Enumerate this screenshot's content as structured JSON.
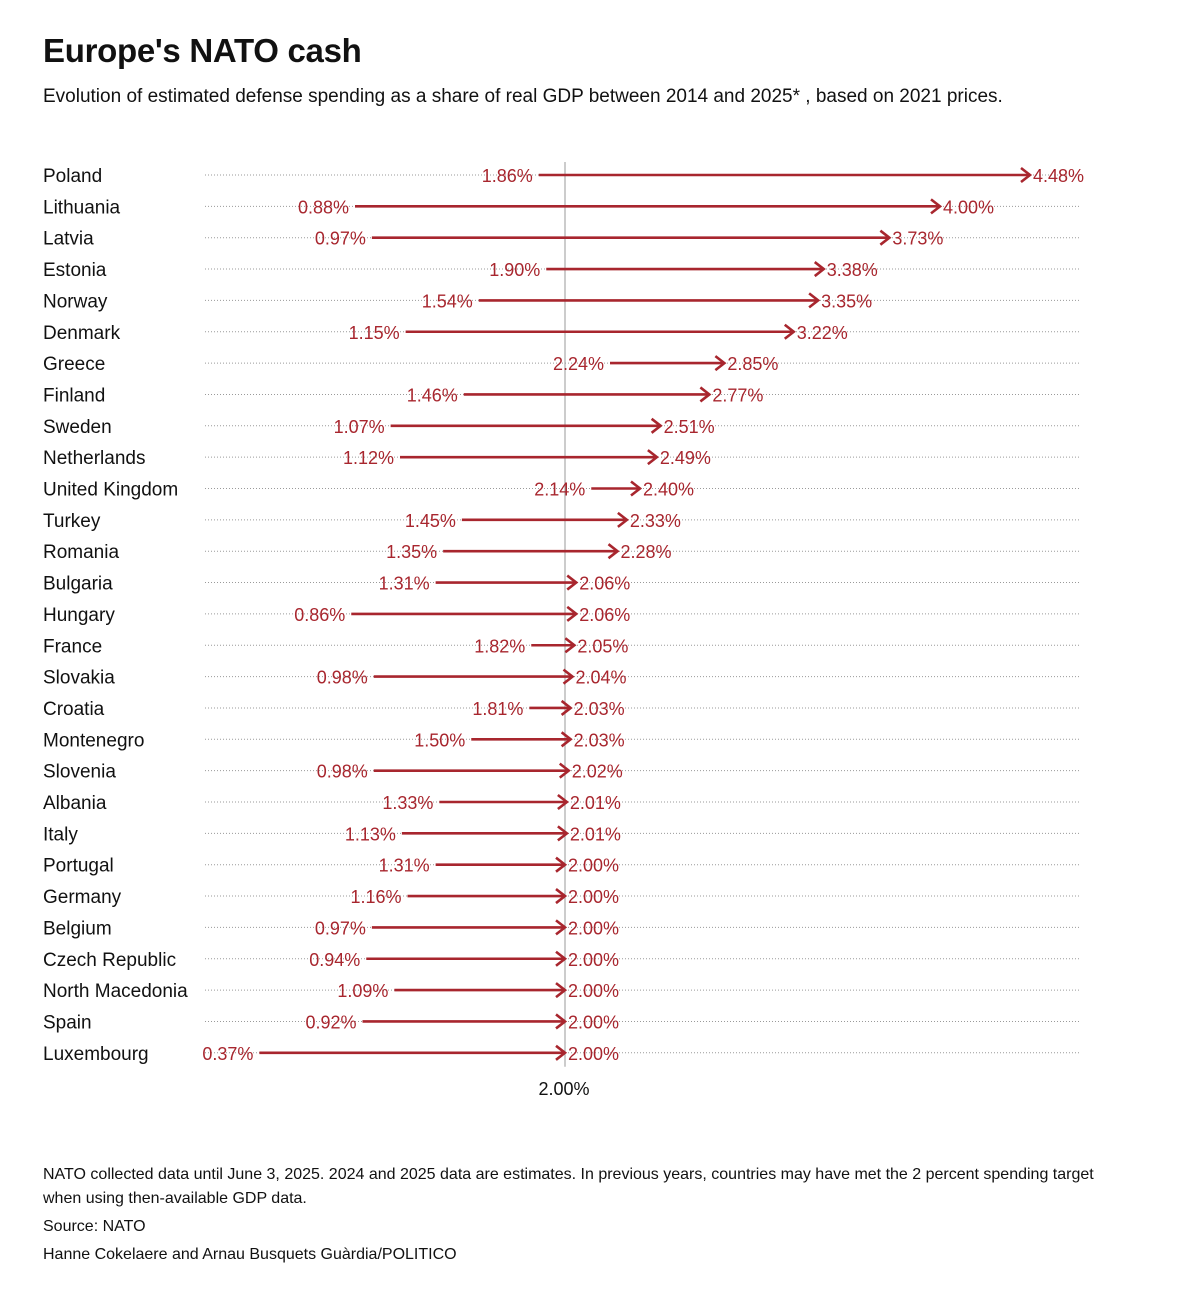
{
  "title": "Europe's NATO cash",
  "subtitle": "Evolution of estimated defense spending as a share of real GDP between 2014 and 2025* , based on 2021 prices.",
  "footer": {
    "note": "NATO collected data until June 3, 2025. 2024 and 2025 data are estimates. In previous years, countries may have met the 2 percent spending target when using then-available GDP data.",
    "source": "Source: NATO",
    "credit": "Hanne Cokelaere and Arnau Busquets Guàrdia/POLITICO"
  },
  "colors": {
    "accent": "#a8262e",
    "dots": "#9a9a9a",
    "refline": "#9a9a9a",
    "text": "#111111"
  },
  "chart_data": {
    "type": "dumbbell",
    "title": "Europe's NATO cash",
    "series": [
      {
        "name": "2014",
        "unit": "% of GDP"
      },
      {
        "name": "2025",
        "unit": "% of GDP"
      }
    ],
    "reference_line": {
      "value": 2.0,
      "label": "2.00%"
    },
    "xlim": [
      0.37,
      4.48
    ],
    "rows": [
      {
        "country": "Poland",
        "start": 1.86,
        "end": 4.48,
        "start_label": "1.86%",
        "end_label": "4.48%"
      },
      {
        "country": "Lithuania",
        "start": 0.88,
        "end": 4.0,
        "start_label": "0.88%",
        "end_label": "4.00%"
      },
      {
        "country": "Latvia",
        "start": 0.97,
        "end": 3.73,
        "start_label": "0.97%",
        "end_label": "3.73%"
      },
      {
        "country": "Estonia",
        "start": 1.9,
        "end": 3.38,
        "start_label": "1.90%",
        "end_label": "3.38%"
      },
      {
        "country": "Norway",
        "start": 1.54,
        "end": 3.35,
        "start_label": "1.54%",
        "end_label": "3.35%"
      },
      {
        "country": "Denmark",
        "start": 1.15,
        "end": 3.22,
        "start_label": "1.15%",
        "end_label": "3.22%"
      },
      {
        "country": "Greece",
        "start": 2.24,
        "end": 2.85,
        "start_label": "2.24%",
        "end_label": "2.85%"
      },
      {
        "country": "Finland",
        "start": 1.46,
        "end": 2.77,
        "start_label": "1.46%",
        "end_label": "2.77%"
      },
      {
        "country": "Sweden",
        "start": 1.07,
        "end": 2.51,
        "start_label": "1.07%",
        "end_label": "2.51%"
      },
      {
        "country": "Netherlands",
        "start": 1.12,
        "end": 2.49,
        "start_label": "1.12%",
        "end_label": "2.49%"
      },
      {
        "country": "United Kingdom",
        "start": 2.14,
        "end": 2.4,
        "start_label": "2.14%",
        "end_label": "2.40%"
      },
      {
        "country": "Turkey",
        "start": 1.45,
        "end": 2.33,
        "start_label": "1.45%",
        "end_label": "2.33%"
      },
      {
        "country": "Romania",
        "start": 1.35,
        "end": 2.28,
        "start_label": "1.35%",
        "end_label": "2.28%"
      },
      {
        "country": "Bulgaria",
        "start": 1.31,
        "end": 2.06,
        "start_label": "1.31%",
        "end_label": "2.06%"
      },
      {
        "country": "Hungary",
        "start": 0.86,
        "end": 2.06,
        "start_label": "0.86%",
        "end_label": "2.06%"
      },
      {
        "country": "France",
        "start": 1.82,
        "end": 2.05,
        "start_label": "1.82%",
        "end_label": "2.05%"
      },
      {
        "country": "Slovakia",
        "start": 0.98,
        "end": 2.04,
        "start_label": "0.98%",
        "end_label": "2.04%"
      },
      {
        "country": "Croatia",
        "start": 1.81,
        "end": 2.03,
        "start_label": "1.81%",
        "end_label": "2.03%"
      },
      {
        "country": "Montenegro",
        "start": 1.5,
        "end": 2.03,
        "start_label": "1.50%",
        "end_label": "2.03%"
      },
      {
        "country": "Slovenia",
        "start": 0.98,
        "end": 2.02,
        "start_label": "0.98%",
        "end_label": "2.02%"
      },
      {
        "country": "Albania",
        "start": 1.33,
        "end": 2.01,
        "start_label": "1.33%",
        "end_label": "2.01%"
      },
      {
        "country": "Italy",
        "start": 1.13,
        "end": 2.01,
        "start_label": "1.13%",
        "end_label": "2.01%"
      },
      {
        "country": "Portugal",
        "start": 1.31,
        "end": 2.0,
        "start_label": "1.31%",
        "end_label": "2.00%"
      },
      {
        "country": "Germany",
        "start": 1.16,
        "end": 2.0,
        "start_label": "1.16%",
        "end_label": "2.00%"
      },
      {
        "country": "Belgium",
        "start": 0.97,
        "end": 2.0,
        "start_label": "0.97%",
        "end_label": "2.00%"
      },
      {
        "country": "Czech Republic",
        "start": 0.94,
        "end": 2.0,
        "start_label": "0.94%",
        "end_label": "2.00%"
      },
      {
        "country": "North Macedonia",
        "start": 1.09,
        "end": 2.0,
        "start_label": "1.09%",
        "end_label": "2.00%"
      },
      {
        "country": "Spain",
        "start": 0.92,
        "end": 2.0,
        "start_label": "0.92%",
        "end_label": "2.00%"
      },
      {
        "country": "Luxembourg",
        "start": 0.37,
        "end": 2.0,
        "start_label": "0.37%",
        "end_label": "2.00%"
      }
    ]
  }
}
